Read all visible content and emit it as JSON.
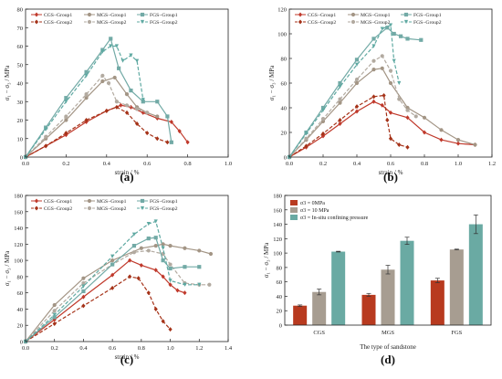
{
  "colors": {
    "cgs": "#b83a1f",
    "mgs": "#a79d91",
    "fgs": "#6aaaa3",
    "cgs1": "#c0392b",
    "cgs2": "#a53218",
    "mgs1": "#a39585",
    "mgs2": "#b2aaa0",
    "fgs1": "#72aaa6",
    "fgs2": "#5fa9a2"
  },
  "chart_data": [
    {
      "type": "line",
      "panel_label": "(a)",
      "xlabel": "strain / %",
      "ylabel": "σ₁ − σ₃ / MPa",
      "xlim": [
        0,
        1.0
      ],
      "ylim": [
        0,
        80
      ],
      "xticks": [
        "0.0",
        "0.2",
        "0.4",
        "0.6",
        "0.8",
        "1.0"
      ],
      "yticks": [
        "0",
        "10",
        "20",
        "30",
        "40",
        "50",
        "60",
        "70",
        "80"
      ],
      "xtick_values": [
        0,
        0.2,
        0.4,
        0.6,
        0.8,
        1.0
      ],
      "ytick_values": [
        0,
        10,
        20,
        30,
        40,
        50,
        60,
        70,
        80
      ],
      "legend": [
        "CGS−Group1",
        "MGS−Group1",
        "FGS−Group1",
        "CGS−Group2",
        "MGS−Group2",
        "FGS−Group2"
      ],
      "series": [
        {
          "name": "CGS−Group1",
          "color_key": "cgs1",
          "marker": "diamond",
          "dash": false,
          "x": [
            0,
            0.1,
            0.2,
            0.3,
            0.4,
            0.47,
            0.52,
            0.58,
            0.65,
            0.72,
            0.76,
            0.8
          ],
          "y": [
            0,
            6,
            12,
            19,
            25,
            28,
            27,
            24,
            21,
            19,
            14,
            8
          ]
        },
        {
          "name": "CGS−Group2",
          "color_key": "cgs2",
          "marker": "diamond",
          "dash": true,
          "x": [
            0,
            0.1,
            0.2,
            0.3,
            0.4,
            0.45,
            0.5,
            0.55,
            0.6,
            0.65,
            0.7
          ],
          "y": [
            0,
            6,
            13,
            20,
            25,
            27,
            24,
            18,
            13,
            10,
            8
          ]
        },
        {
          "name": "MGS−Group1",
          "color_key": "mgs1",
          "marker": "circle",
          "dash": false,
          "x": [
            0,
            0.1,
            0.2,
            0.3,
            0.38,
            0.44,
            0.5,
            0.55,
            0.6,
            0.65
          ],
          "y": [
            0,
            10,
            20,
            32,
            41,
            43,
            34,
            27,
            24,
            22
          ]
        },
        {
          "name": "MGS−Group2",
          "color_key": "mgs2",
          "marker": "circle",
          "dash": true,
          "x": [
            0,
            0.1,
            0.2,
            0.3,
            0.38,
            0.41,
            0.45,
            0.5,
            0.55,
            0.6
          ],
          "y": [
            0,
            11,
            22,
            34,
            44,
            40,
            30,
            28,
            26,
            24
          ]
        },
        {
          "name": "FGS−Group1",
          "color_key": "fgs1",
          "marker": "square",
          "dash": false,
          "x": [
            0,
            0.1,
            0.2,
            0.3,
            0.38,
            0.42,
            0.46,
            0.52,
            0.58,
            0.65,
            0.7,
            0.72
          ],
          "y": [
            0,
            16,
            32,
            46,
            58,
            64,
            48,
            36,
            30,
            30,
            22,
            8
          ]
        },
        {
          "name": "FGS−Group2",
          "color_key": "fgs2",
          "marker": "triangle",
          "dash": true,
          "x": [
            0,
            0.1,
            0.2,
            0.3,
            0.38,
            0.42,
            0.45,
            0.48,
            0.52,
            0.55,
            0.58
          ],
          "y": [
            0,
            15,
            30,
            44,
            57,
            60,
            60,
            52,
            55,
            52,
            31
          ]
        }
      ]
    },
    {
      "type": "line",
      "panel_label": "(b)",
      "xlabel": "strain / %",
      "ylabel": "σ₁ − σ₃ / MPa",
      "xlim": [
        0,
        1.2
      ],
      "ylim": [
        0,
        120
      ],
      "xticks": [
        "0.0",
        "0.2",
        "0.4",
        "0.6",
        "0.8",
        "1.0",
        "1.2"
      ],
      "yticks": [
        "0",
        "20",
        "40",
        "60",
        "80",
        "100",
        "120"
      ],
      "xtick_values": [
        0,
        0.2,
        0.4,
        0.6,
        0.8,
        1.0,
        1.2
      ],
      "ytick_values": [
        0,
        20,
        40,
        60,
        80,
        100,
        120
      ],
      "legend": [
        "CGS−Group1",
        "MGS−Group1",
        "FGS−Group1",
        "CGS−Group2",
        "MGS−Group2",
        "FGS−Group2"
      ],
      "series": [
        {
          "name": "CGS−Group1",
          "color_key": "cgs1",
          "marker": "diamond",
          "dash": false,
          "x": [
            0,
            0.1,
            0.2,
            0.3,
            0.4,
            0.5,
            0.55,
            0.6,
            0.7,
            0.8,
            0.9,
            1.0,
            1.1
          ],
          "y": [
            0,
            8,
            17,
            27,
            37,
            45,
            42,
            36,
            32,
            20,
            14,
            11,
            10
          ]
        },
        {
          "name": "CGS−Group2",
          "color_key": "cgs2",
          "marker": "diamond",
          "dash": true,
          "x": [
            0,
            0.1,
            0.2,
            0.3,
            0.4,
            0.5,
            0.56,
            0.58,
            0.6,
            0.65,
            0.7
          ],
          "y": [
            0,
            9,
            19,
            30,
            41,
            49,
            50,
            30,
            15,
            10,
            8
          ]
        },
        {
          "name": "MGS−Group1",
          "color_key": "mgs1",
          "marker": "circle",
          "dash": false,
          "x": [
            0,
            0.1,
            0.2,
            0.3,
            0.4,
            0.5,
            0.55,
            0.6,
            0.7,
            0.8,
            0.9,
            1.0,
            1.1
          ],
          "y": [
            0,
            14,
            29,
            44,
            60,
            71,
            72,
            60,
            40,
            32,
            22,
            14,
            10
          ]
        },
        {
          "name": "MGS−Group2",
          "color_key": "mgs2",
          "marker": "circle",
          "dash": true,
          "x": [
            0,
            0.1,
            0.2,
            0.3,
            0.4,
            0.5,
            0.55,
            0.6,
            0.65,
            0.7,
            0.75
          ],
          "y": [
            0,
            15,
            31,
            47,
            63,
            78,
            82,
            70,
            47,
            38,
            33
          ]
        },
        {
          "name": "FGS−Group1",
          "color_key": "fgs1",
          "marker": "square",
          "dash": false,
          "x": [
            0,
            0.1,
            0.2,
            0.3,
            0.4,
            0.5,
            0.58,
            0.62,
            0.66,
            0.7,
            0.78
          ],
          "y": [
            0,
            20,
            40,
            60,
            79,
            96,
            105,
            100,
            98,
            96,
            95
          ]
        },
        {
          "name": "FGS−Group2",
          "color_key": "fgs2",
          "marker": "triangle",
          "dash": true,
          "x": [
            0,
            0.1,
            0.2,
            0.3,
            0.4,
            0.5,
            0.55,
            0.6,
            0.62,
            0.65
          ],
          "y": [
            0,
            19,
            38,
            57,
            75,
            90,
            104,
            107,
            78,
            60
          ]
        }
      ]
    },
    {
      "type": "line",
      "panel_label": "(c)",
      "xlabel": "strain / %",
      "ylabel": "σ₁ − σ₃ / MPa",
      "xlim": [
        0,
        1.4
      ],
      "ylim": [
        0,
        180
      ],
      "xticks": [
        "0.0",
        "0.2",
        "0.4",
        "0.6",
        "0.8",
        "1.0",
        "1.2",
        "1.4"
      ],
      "yticks": [
        "0",
        "20",
        "40",
        "60",
        "80",
        "100",
        "120",
        "140",
        "160",
        "180"
      ],
      "xtick_values": [
        0,
        0.2,
        0.4,
        0.6,
        0.8,
        1.0,
        1.2,
        1.4
      ],
      "ytick_values": [
        0,
        20,
        40,
        60,
        80,
        100,
        120,
        140,
        160,
        180
      ],
      "legend": [
        "CGS−Group1",
        "MGS−Group1",
        "FGS−Group1",
        "CGS−Group2",
        "MGS−Group2",
        "FGS−Group2"
      ],
      "series": [
        {
          "name": "CGS−Group1",
          "color_key": "cgs1",
          "marker": "diamond",
          "dash": false,
          "x": [
            0,
            0.2,
            0.4,
            0.6,
            0.72,
            0.8,
            0.9,
            0.95,
            1.0,
            1.05,
            1.1
          ],
          "y": [
            0,
            27,
            55,
            82,
            100,
            94,
            88,
            80,
            70,
            63,
            60
          ]
        },
        {
          "name": "CGS−Group2",
          "color_key": "cgs2",
          "marker": "diamond",
          "dash": true,
          "x": [
            0,
            0.2,
            0.4,
            0.6,
            0.72,
            0.78,
            0.85,
            0.9,
            0.95,
            1.0
          ],
          "y": [
            0,
            22,
            44,
            66,
            80,
            78,
            60,
            40,
            25,
            15
          ]
        },
        {
          "name": "MGS−Group1",
          "color_key": "mgs1",
          "marker": "circle",
          "dash": false,
          "x": [
            0,
            0.2,
            0.4,
            0.6,
            0.8,
            0.9,
            0.95,
            1.0,
            1.1,
            1.2,
            1.28
          ],
          "y": [
            0,
            45,
            78,
            100,
            115,
            118,
            120,
            118,
            115,
            112,
            108
          ]
        },
        {
          "name": "MGS−Group2",
          "color_key": "mgs2",
          "marker": "circle",
          "dash": true,
          "x": [
            0,
            0.2,
            0.4,
            0.6,
            0.75,
            0.85,
            0.95,
            1.0,
            1.1,
            1.2,
            1.27
          ],
          "y": [
            0,
            38,
            72,
            95,
            110,
            112,
            108,
            95,
            72,
            70,
            70
          ]
        },
        {
          "name": "FGS−Group1",
          "color_key": "fgs1",
          "marker": "square",
          "dash": false,
          "x": [
            0,
            0.2,
            0.4,
            0.6,
            0.75,
            0.85,
            0.9,
            0.95,
            1.0,
            1.1,
            1.2
          ],
          "y": [
            0,
            30,
            62,
            95,
            118,
            127,
            128,
            100,
            90,
            92,
            92
          ]
        },
        {
          "name": "FGS−Group2",
          "color_key": "fgs2",
          "marker": "triangle",
          "dash": true,
          "x": [
            0,
            0.2,
            0.4,
            0.6,
            0.75,
            0.85,
            0.9,
            0.95,
            1.0,
            1.1,
            1.2
          ],
          "y": [
            0,
            33,
            68,
            105,
            132,
            145,
            148,
            115,
            75,
            70,
            70
          ]
        }
      ]
    },
    {
      "type": "bar",
      "panel_label": "(d)",
      "xlabel": "The type of sandstone",
      "ylabel": "σ₁ − σ₃ / MPa",
      "categories": [
        "CGS",
        "MGS",
        "FGS"
      ],
      "ylim": [
        0,
        180
      ],
      "yticks": [
        "0",
        "20",
        "40",
        "60",
        "80",
        "100",
        "120",
        "140",
        "160",
        "180"
      ],
      "ytick_values": [
        0,
        20,
        40,
        60,
        80,
        100,
        120,
        140,
        160,
        180
      ],
      "legend": [
        "σ3 = 0MPa",
        "σ3 = 10 MPa",
        "σ3 = In-situ confining pressure"
      ],
      "series": [
        {
          "name": "σ3 = 0MPa",
          "color_key": "cgs",
          "values": [
            27,
            42,
            62
          ],
          "errors": [
            1,
            2,
            3
          ]
        },
        {
          "name": "σ3 = 10 MPa",
          "color_key": "mgs",
          "values": [
            46,
            77,
            105
          ],
          "errors": [
            4,
            6,
            0.5
          ]
        },
        {
          "name": "σ3 = In-situ confining pressure",
          "color_key": "fgs",
          "values": [
            102,
            117,
            140
          ],
          "errors": [
            0.5,
            5,
            13
          ]
        }
      ]
    }
  ]
}
